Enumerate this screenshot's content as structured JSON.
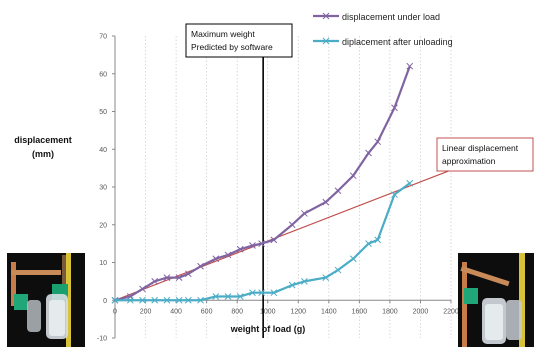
{
  "chart_data": {
    "type": "line",
    "xlabel": "weight of load (g)",
    "ylabel_line1": "displacement",
    "ylabel_line2": "(mm)",
    "xlim": [
      0,
      2200
    ],
    "ylim": [
      -10,
      70
    ],
    "x_ticks": [
      0,
      200,
      400,
      600,
      800,
      1000,
      1200,
      1400,
      1600,
      1800,
      2000,
      2200
    ],
    "y_ticks": [
      -10,
      0,
      10,
      20,
      30,
      40,
      50,
      60,
      70
    ],
    "grid": "vertical dotted",
    "legend_position": "top-right",
    "series": [
      {
        "name": "displacement under load",
        "color": "#8064a2",
        "marker": "x",
        "points": [
          [
            0,
            0
          ],
          [
            100,
            1
          ],
          [
            180,
            3
          ],
          [
            260,
            5
          ],
          [
            340,
            6
          ],
          [
            420,
            6
          ],
          [
            480,
            7
          ],
          [
            560,
            9
          ],
          [
            660,
            11
          ],
          [
            740,
            12
          ],
          [
            820,
            13.5
          ],
          [
            900,
            14.5
          ],
          [
            960,
            15
          ],
          [
            1040,
            16
          ],
          [
            1160,
            20
          ],
          [
            1240,
            23
          ],
          [
            1380,
            26
          ],
          [
            1460,
            29
          ],
          [
            1560,
            33
          ],
          [
            1660,
            39
          ],
          [
            1720,
            42
          ],
          [
            1830,
            51
          ],
          [
            1930,
            62
          ]
        ]
      },
      {
        "name": "diplacement after unloading",
        "color": "#4bacc6",
        "marker": "x",
        "points": [
          [
            0,
            0
          ],
          [
            100,
            0
          ],
          [
            180,
            0
          ],
          [
            260,
            0
          ],
          [
            340,
            0
          ],
          [
            420,
            0
          ],
          [
            480,
            0
          ],
          [
            560,
            0
          ],
          [
            660,
            1
          ],
          [
            740,
            1
          ],
          [
            820,
            1
          ],
          [
            900,
            2
          ],
          [
            960,
            2
          ],
          [
            1040,
            2
          ],
          [
            1160,
            4
          ],
          [
            1240,
            5
          ],
          [
            1380,
            6
          ],
          [
            1460,
            8
          ],
          [
            1560,
            11
          ],
          [
            1660,
            15
          ],
          [
            1720,
            16
          ],
          [
            1830,
            28
          ],
          [
            1930,
            31
          ]
        ]
      }
    ],
    "reference_lines": [
      {
        "kind": "vertical",
        "x": 970,
        "color": "#000000"
      },
      {
        "kind": "linear",
        "from": [
          0,
          0
        ],
        "to": [
          2200,
          34.5
        ],
        "color": "#c0504d"
      }
    ],
    "annotations": {
      "max_weight_line1": "Maximum weight",
      "max_weight_line2": "Predicted by software",
      "linear_line1": "Linear displacement",
      "linear_line2": "approximation"
    }
  }
}
